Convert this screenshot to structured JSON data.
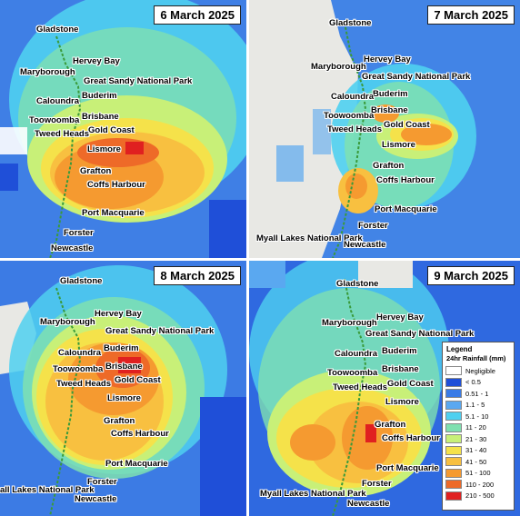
{
  "colors": {
    "ocean_blue": "#1f4fd8",
    "light_blue": "#5aa8f0",
    "cyan": "#4fd0f0",
    "aqua_green": "#7fe0b0",
    "yellow_green": "#c8f078",
    "yellow": "#f5e24a",
    "orange_yellow": "#f8c040",
    "orange": "#f59a30",
    "dark_orange": "#ee6a28",
    "red": "#e02020",
    "land_grey": "#e8e8e4",
    "coast_green": "#3a9a3a"
  },
  "panels": [
    {
      "date": "6 March 2025",
      "places": {
        "gladstone": "Gladstone",
        "hervey_bay": "Hervey Bay",
        "maryborough": "Maryborough",
        "great_sandy": "Great Sandy National Park",
        "buderim": "Buderim",
        "caloundra": "Caloundra",
        "brisbane": "Brisbane",
        "toowoomba": "Toowoomba",
        "gold_coast": "Gold Coast",
        "tweed_heads": "Tweed Heads",
        "lismore": "Lismore",
        "grafton": "Grafton",
        "coffs_harbour": "Coffs Harbour",
        "port_macquarie": "Port Macquarie",
        "forster": "Forster",
        "newcastle": "Newcastle"
      }
    },
    {
      "date": "7 March 2025",
      "places": {
        "gladstone": "Gladstone",
        "hervey_bay": "Hervey Bay",
        "maryborough": "Maryborough",
        "great_sandy": "Great Sandy National Park",
        "buderim": "Buderim",
        "caloundra": "Caloundra",
        "brisbane": "Brisbane",
        "toowoomba": "Toowoomba",
        "gold_coast": "Gold Coast",
        "tweed_heads": "Tweed Heads",
        "lismore": "Lismore",
        "grafton": "Grafton",
        "coffs_harbour": "Coffs Harbour",
        "port_macquarie": "Port Macquarie",
        "forster": "Forster",
        "myall": "Myall Lakes National Park",
        "newcastle": "Newcastle"
      }
    },
    {
      "date": "8 March 2025",
      "places": {
        "gladstone": "Gladstone",
        "hervey_bay": "Hervey Bay",
        "maryborough": "Maryborough",
        "great_sandy": "Great Sandy National Park",
        "buderim": "Buderim",
        "caloundra": "Caloundra",
        "brisbane": "Brisbane",
        "toowoomba": "Toowoomba",
        "gold_coast": "Gold Coast",
        "tweed_heads": "Tweed Heads",
        "lismore": "Lismore",
        "grafton": "Grafton",
        "coffs_harbour": "Coffs Harbour",
        "port_macquarie": "Port Macquarie",
        "forster": "Forster",
        "myall": "all Lakes National Park",
        "newcastle": "Newcastle"
      }
    },
    {
      "date": "9 March 2025",
      "places": {
        "gladstone": "Gladstone",
        "hervey_bay": "Hervey Bay",
        "maryborough": "Maryborough",
        "great_sandy": "Great Sandy National Park",
        "buderim": "Buderim",
        "caloundra": "Caloundra",
        "brisbane": "Brisbane",
        "toowoomba": "Toowoomba",
        "gold_coast": "Gold Coast",
        "tweed_heads": "Tweed Heads",
        "lismore": "Lismore",
        "grafton": "Grafton",
        "coffs_harbour": "Coffs Harbour",
        "port_macquarie": "Port Macquarie",
        "forster": "Forster",
        "myall": "Myall Lakes National Park",
        "newcastle": "Newcastle"
      }
    }
  ],
  "legend": {
    "title": "Legend",
    "subtitle": "24hr Rainfall (mm)",
    "items": [
      {
        "label": "Negligible",
        "color": "#ffffff"
      },
      {
        "label": "< 0.5",
        "color": "#1f4fd8"
      },
      {
        "label": "0.51 - 1",
        "color": "#3a7be6"
      },
      {
        "label": "1.1 - 5",
        "color": "#5aa8f0"
      },
      {
        "label": "5.1 - 10",
        "color": "#4fd0f0"
      },
      {
        "label": "11 - 20",
        "color": "#7fe0b0"
      },
      {
        "label": "21 - 30",
        "color": "#c8f078"
      },
      {
        "label": "31 - 40",
        "color": "#f5e24a"
      },
      {
        "label": "41 - 50",
        "color": "#f8c040"
      },
      {
        "label": "51 - 100",
        "color": "#f59a30"
      },
      {
        "label": "110 - 200",
        "color": "#ee6a28"
      },
      {
        "label": "210 - 500",
        "color": "#e02020"
      }
    ]
  }
}
